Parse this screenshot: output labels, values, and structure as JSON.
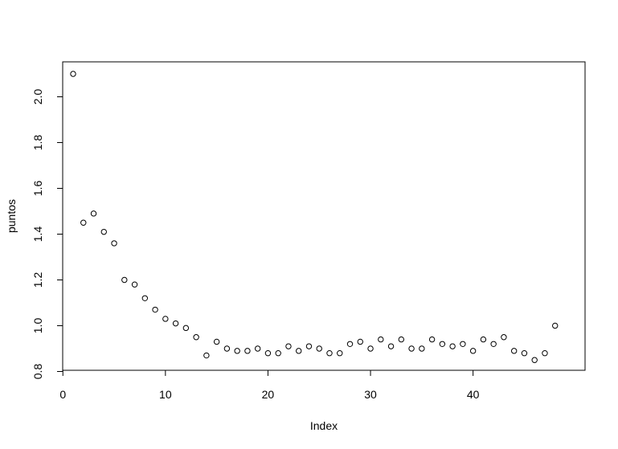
{
  "chart_data": {
    "type": "scatter",
    "title": "",
    "xlabel": "Index",
    "ylabel": "puntos",
    "xlim": [
      0,
      48
    ],
    "ylim": [
      0.8,
      2.1
    ],
    "xticks": [
      0,
      10,
      20,
      30,
      40
    ],
    "yticks": [
      0.8,
      1.0,
      1.2,
      1.4,
      1.6,
      1.8,
      2.0
    ],
    "xtick_labels": [
      "0",
      "10",
      "20",
      "30",
      "40"
    ],
    "ytick_labels": [
      "0.8",
      "1.0",
      "1.2",
      "1.4",
      "1.6",
      "1.8",
      "2.0"
    ],
    "grid": false,
    "marker": "open-circle",
    "color": "#000000",
    "x": [
      1,
      2,
      3,
      4,
      5,
      6,
      7,
      8,
      9,
      10,
      11,
      12,
      13,
      14,
      15,
      16,
      17,
      18,
      19,
      20,
      21,
      22,
      23,
      24,
      25,
      26,
      27,
      28,
      29,
      30,
      31,
      32,
      33,
      34,
      35,
      36,
      37,
      38,
      39,
      40,
      41,
      42,
      43,
      44,
      45,
      46,
      47,
      48
    ],
    "y": [
      2.1,
      1.45,
      1.49,
      1.41,
      1.36,
      1.2,
      1.18,
      1.12,
      1.07,
      1.03,
      1.01,
      0.99,
      0.95,
      0.87,
      0.93,
      0.9,
      0.89,
      0.89,
      0.9,
      0.88,
      0.88,
      0.91,
      0.89,
      0.91,
      0.9,
      0.88,
      0.88,
      0.92,
      0.93,
      0.9,
      0.94,
      0.91,
      0.94,
      0.9,
      0.9,
      0.94,
      0.92,
      0.91,
      0.92,
      0.89,
      0.94,
      0.92,
      0.95,
      0.89,
      0.88,
      0.85,
      0.88,
      1.0
    ]
  }
}
